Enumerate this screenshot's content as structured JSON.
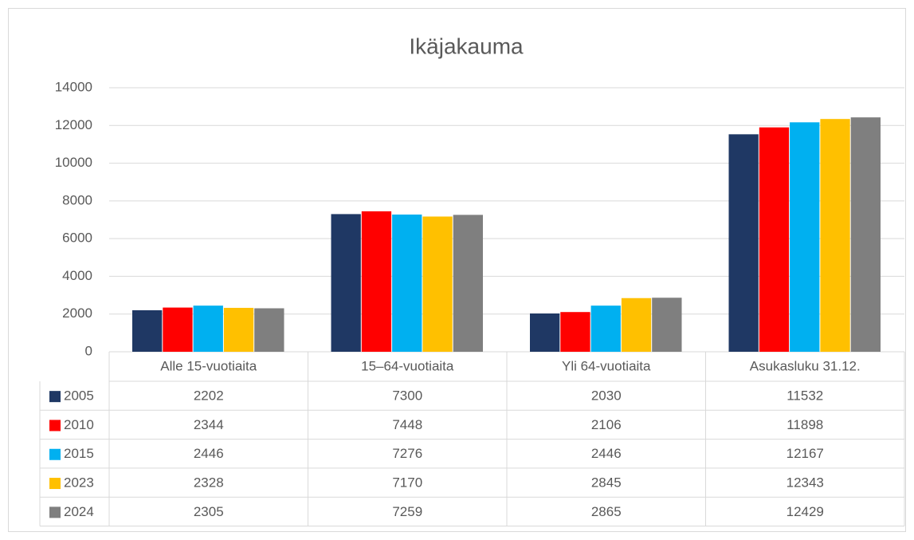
{
  "chart_data": {
    "type": "bar",
    "title": "Ikäjakauma",
    "categories": [
      "Alle 15-vuotiaita",
      "15–64-vuotiaita",
      "Yli 64-vuotiaita",
      "Asukasluku 31.12."
    ],
    "series": [
      {
        "name": "2005",
        "color": "#1f3864",
        "values": [
          2202,
          7300,
          2030,
          11532
        ]
      },
      {
        "name": "2010",
        "color": "#ff0000",
        "values": [
          2344,
          7448,
          2106,
          11898
        ]
      },
      {
        "name": "2015",
        "color": "#00b0f0",
        "values": [
          2446,
          7276,
          2446,
          12167
        ]
      },
      {
        "name": "2023",
        "color": "#ffc000",
        "values": [
          2328,
          7170,
          2845,
          12343
        ]
      },
      {
        "name": "2024",
        "color": "#7f7f7f",
        "values": [
          2305,
          7259,
          2865,
          12429
        ]
      }
    ],
    "ylim": [
      0,
      14000
    ],
    "yticks": [
      0,
      2000,
      4000,
      6000,
      8000,
      10000,
      12000,
      14000
    ],
    "grid": true
  }
}
